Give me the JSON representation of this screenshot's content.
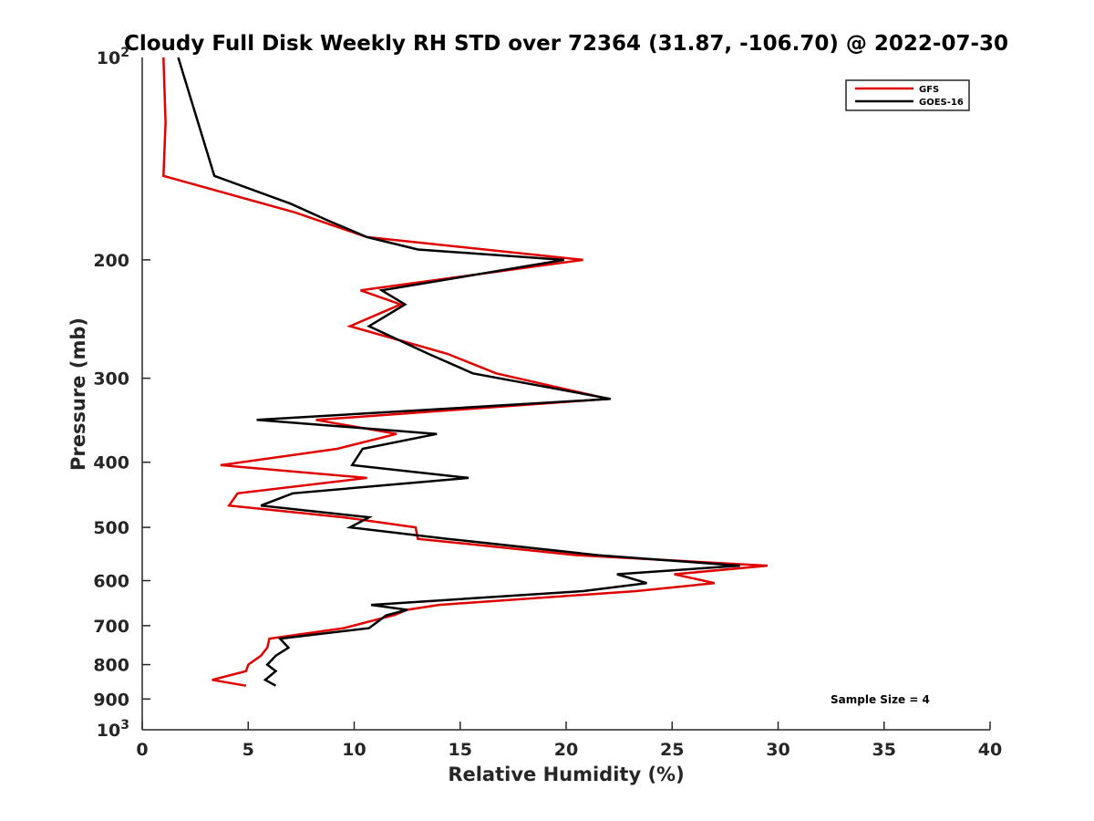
{
  "chart_data": {
    "type": "line",
    "title": "Cloudy Full Disk Weekly RH STD over 72364 (31.87, -106.70) @ 2022-07-30",
    "xlabel": "Relative Humidity (%)",
    "ylabel": "Pressure (mb)",
    "xlim": [
      0,
      40
    ],
    "ylim": [
      100,
      1000
    ],
    "y_scale": "log",
    "y_reversed": true,
    "x_ticks": [
      "0",
      "5",
      "10",
      "15",
      "20",
      "25",
      "30",
      "35",
      "40"
    ],
    "y_ticks": [
      {
        "value": 100,
        "base": "10",
        "exp": "2"
      },
      {
        "value": 200,
        "label": "200"
      },
      {
        "value": 300,
        "label": "300"
      },
      {
        "value": 400,
        "label": "400"
      },
      {
        "value": 500,
        "label": "500"
      },
      {
        "value": 600,
        "label": "600"
      },
      {
        "value": 700,
        "label": "700"
      },
      {
        "value": 800,
        "label": "800"
      },
      {
        "value": 900,
        "label": "900"
      },
      {
        "value": 1000,
        "base": "10",
        "exp": "3"
      }
    ],
    "legend_position": "top-right",
    "annotation": "Sample Size = 4",
    "series": [
      {
        "name": "GFS",
        "color": "#e00000",
        "points": [
          [
            1.0,
            100
          ],
          [
            1.1,
            125
          ],
          [
            1.0,
            150
          ],
          [
            7.2,
            170
          ],
          [
            10.6,
            185
          ],
          [
            20.8,
            200
          ],
          [
            10.3,
            222
          ],
          [
            12.2,
            233
          ],
          [
            9.8,
            251
          ],
          [
            14.4,
            276
          ],
          [
            16.7,
            295
          ],
          [
            22.0,
            322
          ],
          [
            8.2,
            346
          ],
          [
            12.0,
            363
          ],
          [
            9.2,
            382
          ],
          [
            3.7,
            404
          ],
          [
            10.6,
            422
          ],
          [
            4.5,
            445
          ],
          [
            4.1,
            464
          ],
          [
            9.5,
            483
          ],
          [
            12.9,
            500
          ],
          [
            13.0,
            520
          ],
          [
            20.5,
            550
          ],
          [
            29.5,
            570
          ],
          [
            25.1,
            587
          ],
          [
            27.0,
            605
          ],
          [
            23.3,
            622
          ],
          [
            14.0,
            652
          ],
          [
            12.5,
            663
          ],
          [
            11.9,
            675
          ],
          [
            9.5,
            706
          ],
          [
            6.0,
            732
          ],
          [
            5.9,
            755
          ],
          [
            5.6,
            776
          ],
          [
            5.0,
            800
          ],
          [
            4.9,
            818
          ],
          [
            3.3,
            843
          ],
          [
            4.9,
            860
          ]
        ]
      },
      {
        "name": "GOES-16",
        "color": "#000000",
        "points": [
          [
            1.7,
            100
          ],
          [
            3.4,
            150
          ],
          [
            7.0,
            165
          ],
          [
            8.8,
            175
          ],
          [
            10.6,
            185
          ],
          [
            13.0,
            193
          ],
          [
            19.9,
            200
          ],
          [
            11.3,
            222
          ],
          [
            12.4,
            233
          ],
          [
            10.7,
            251
          ],
          [
            13.5,
            276
          ],
          [
            15.6,
            295
          ],
          [
            22.1,
            322
          ],
          [
            5.4,
            346
          ],
          [
            13.9,
            363
          ],
          [
            10.4,
            382
          ],
          [
            9.9,
            404
          ],
          [
            15.4,
            422
          ],
          [
            7.1,
            445
          ],
          [
            5.6,
            464
          ],
          [
            10.7,
            483
          ],
          [
            9.8,
            500
          ],
          [
            14.4,
            520
          ],
          [
            21.5,
            550
          ],
          [
            28.2,
            570
          ],
          [
            22.4,
            587
          ],
          [
            23.8,
            605
          ],
          [
            20.8,
            622
          ],
          [
            10.8,
            652
          ],
          [
            12.5,
            663
          ],
          [
            11.5,
            676
          ],
          [
            10.7,
            706
          ],
          [
            6.5,
            732
          ],
          [
            6.9,
            755
          ],
          [
            6.3,
            776
          ],
          [
            5.9,
            800
          ],
          [
            6.3,
            818
          ],
          [
            5.8,
            843
          ],
          [
            6.3,
            860
          ]
        ]
      }
    ]
  }
}
